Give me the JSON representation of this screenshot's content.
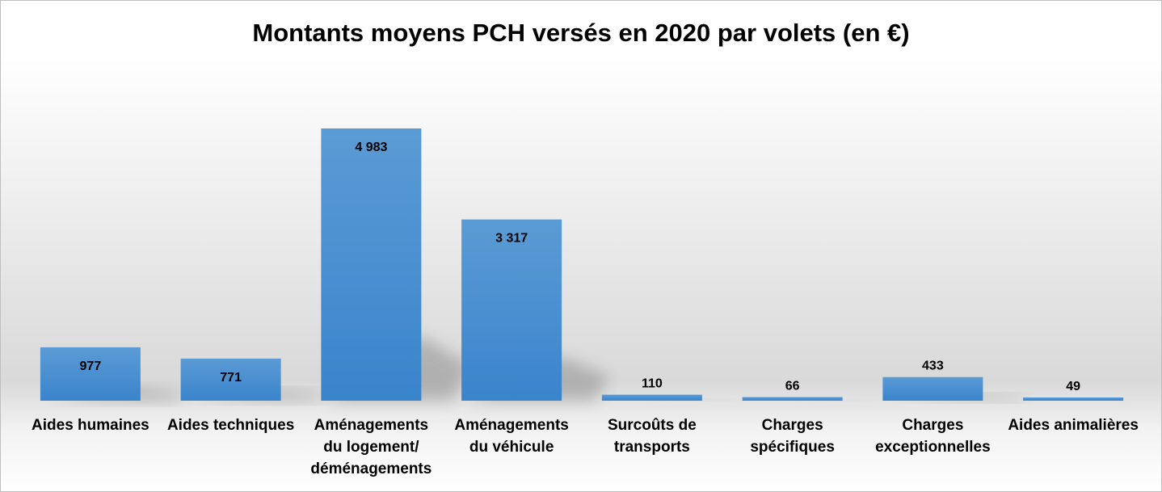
{
  "chart_data": {
    "type": "bar",
    "title": "Montants moyens PCH versés en 2020 par volets (en €)",
    "xlabel": "",
    "ylabel": "",
    "categories": [
      "Aides humaines",
      "Aides techniques",
      "Aménagements\ndu logement/\ndéménagements",
      "Aménagements\ndu véhicule",
      "Surcoûts de\ntransports",
      "Charges\nspécifiques",
      "Charges\nexceptionnelles",
      "Aides animalières"
    ],
    "values": [
      977,
      771,
      4983,
      3317,
      110,
      66,
      433,
      49
    ],
    "data_labels": [
      "977",
      "771",
      "4 983",
      "3 317",
      "110",
      "66",
      "433",
      "49"
    ],
    "ylim": [
      0,
      5000
    ],
    "grid": false,
    "legend": "none",
    "colors": {
      "bar_top": "#5b9bd5",
      "bar_bottom": "#3a84cc",
      "shadow": "#7f7f7f"
    }
  }
}
